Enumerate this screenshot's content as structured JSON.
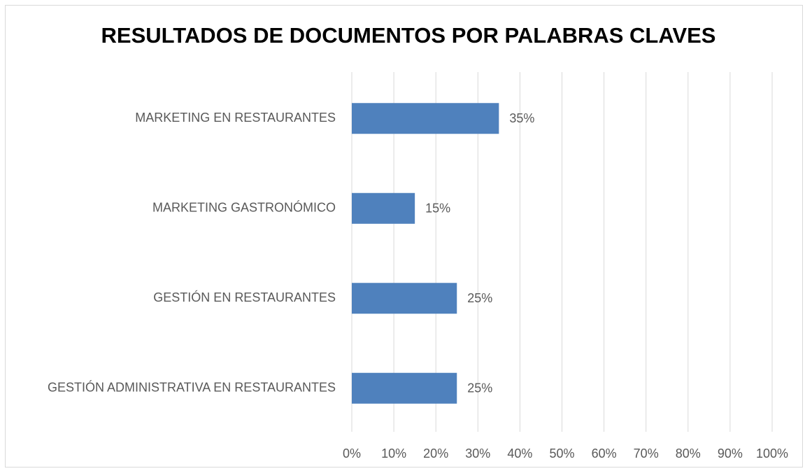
{
  "chart_data": {
    "type": "bar",
    "orientation": "horizontal",
    "title": "RESULTADOS DE DOCUMENTOS POR PALABRAS CLAVES",
    "categories": [
      "MARKETING EN RESTAURANTES",
      "MARKETING GASTRONÓMICO",
      "GESTIÓN EN RESTAURANTES",
      "GESTIÓN ADMINISTRATIVA EN RESTAURANTES"
    ],
    "values": [
      35,
      15,
      25,
      25
    ],
    "value_labels": [
      "35%",
      "15%",
      "25%",
      "25%"
    ],
    "color": "#4f81bd",
    "xlim": [
      0,
      100
    ],
    "xticks": [
      {
        "value": 0,
        "label": "0%"
      },
      {
        "value": 10,
        "label": "10%"
      },
      {
        "value": 20,
        "label": "20%"
      },
      {
        "value": 30,
        "label": "30%"
      },
      {
        "value": 40,
        "label": "40%"
      },
      {
        "value": 50,
        "label": "50%"
      },
      {
        "value": 60,
        "label": "60%"
      },
      {
        "value": 70,
        "label": "70%"
      },
      {
        "value": 80,
        "label": "80%"
      },
      {
        "value": 90,
        "label": "90%"
      },
      {
        "value": 100,
        "label": "100%"
      }
    ],
    "grid": true
  }
}
